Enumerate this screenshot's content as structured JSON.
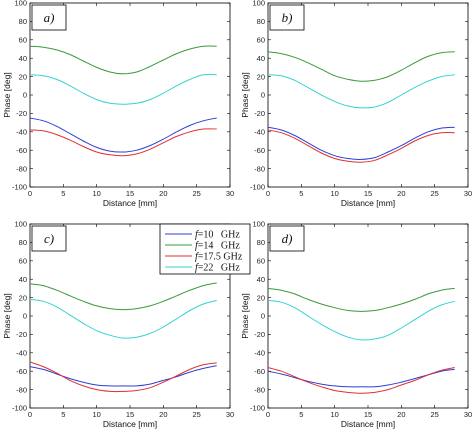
{
  "chart_data": [
    {
      "type": "line",
      "panel_label": "a)",
      "xlabel": "Distance [mm]",
      "ylabel": "Phase [deg]",
      "xlim": [
        0,
        30
      ],
      "ylim": [
        -100,
        100
      ],
      "xticks": [
        0,
        5,
        10,
        15,
        20,
        25,
        30
      ],
      "yticks": [
        -100,
        -80,
        -60,
        -40,
        -20,
        0,
        20,
        40,
        60,
        80,
        100
      ],
      "grid": false,
      "x": [
        0,
        2,
        4,
        6,
        8,
        10,
        12,
        14,
        16,
        18,
        20,
        22,
        24,
        26,
        28
      ],
      "series": [
        {
          "color": "#2b3fd6",
          "values": [
            -25,
            -28,
            -34,
            -42,
            -50,
            -57,
            -61,
            -62,
            -60,
            -55,
            -48,
            -40,
            -33,
            -28,
            -25
          ]
        },
        {
          "color": "#3a9a3a",
          "values": [
            53,
            52,
            49,
            44,
            37,
            30,
            25,
            23,
            25,
            31,
            38,
            45,
            50,
            53,
            53
          ]
        },
        {
          "color": "#e03030",
          "values": [
            -38,
            -39,
            -43,
            -49,
            -56,
            -62,
            -65,
            -66,
            -64,
            -59,
            -52,
            -45,
            -40,
            -37,
            -37
          ]
        },
        {
          "color": "#36d2d2",
          "values": [
            22,
            21,
            17,
            10,
            2,
            -5,
            -9,
            -10,
            -9,
            -5,
            2,
            10,
            17,
            22,
            22
          ]
        }
      ]
    },
    {
      "type": "line",
      "panel_label": "b)",
      "xlabel": "Distance [mm]",
      "ylabel": "Phase [deg]",
      "xlim": [
        0,
        30
      ],
      "ylim": [
        -100,
        100
      ],
      "xticks": [
        0,
        5,
        10,
        15,
        20,
        25,
        30
      ],
      "yticks": [
        -100,
        -80,
        -60,
        -40,
        -20,
        0,
        20,
        40,
        60,
        80,
        100
      ],
      "grid": false,
      "x": [
        0,
        2,
        4,
        6,
        8,
        10,
        12,
        14,
        16,
        18,
        20,
        22,
        24,
        26,
        28
      ],
      "series": [
        {
          "color": "#2b3fd6",
          "values": [
            -35,
            -38,
            -44,
            -52,
            -60,
            -66,
            -69,
            -70,
            -68,
            -62,
            -55,
            -47,
            -40,
            -36,
            -35
          ]
        },
        {
          "color": "#3a9a3a",
          "values": [
            47,
            45,
            41,
            35,
            28,
            21,
            17,
            15,
            16,
            20,
            27,
            35,
            42,
            46,
            47
          ]
        },
        {
          "color": "#e03030",
          "values": [
            -38,
            -41,
            -47,
            -55,
            -63,
            -69,
            -72,
            -73,
            -71,
            -65,
            -58,
            -50,
            -44,
            -41,
            -41
          ]
        },
        {
          "color": "#36d2d2",
          "values": [
            22,
            21,
            16,
            8,
            0,
            -7,
            -12,
            -14,
            -13,
            -8,
            0,
            8,
            15,
            20,
            22
          ]
        }
      ]
    },
    {
      "type": "line",
      "panel_label": "c)",
      "xlabel": "Distance [mm]",
      "ylabel": "Phase [deg]",
      "xlim": [
        0,
        30
      ],
      "ylim": [
        -100,
        100
      ],
      "xticks": [
        0,
        5,
        10,
        15,
        20,
        25,
        30
      ],
      "yticks": [
        -100,
        -80,
        -60,
        -40,
        -20,
        0,
        20,
        40,
        60,
        80,
        100
      ],
      "grid": false,
      "x": [
        0,
        2,
        4,
        6,
        8,
        10,
        12,
        14,
        16,
        18,
        20,
        22,
        24,
        26,
        28
      ],
      "series": [
        {
          "color": "#2b3fd6",
          "values": [
            -55,
            -58,
            -63,
            -68,
            -72,
            -75,
            -76,
            -76,
            -76,
            -74,
            -70,
            -66,
            -61,
            -57,
            -54
          ]
        },
        {
          "color": "#3a9a3a",
          "values": [
            35,
            33,
            28,
            22,
            16,
            11,
            8,
            7,
            8,
            11,
            16,
            22,
            28,
            33,
            36
          ]
        },
        {
          "color": "#e03030",
          "values": [
            -50,
            -55,
            -62,
            -70,
            -76,
            -80,
            -82,
            -82,
            -81,
            -78,
            -72,
            -65,
            -58,
            -53,
            -51
          ]
        },
        {
          "color": "#36d2d2",
          "values": [
            18,
            16,
            10,
            1,
            -8,
            -16,
            -21,
            -24,
            -23,
            -19,
            -12,
            -3,
            6,
            13,
            17
          ]
        }
      ]
    },
    {
      "type": "line",
      "panel_label": "d)",
      "xlabel": "Distance [mm]",
      "ylabel": "Phase [deg]",
      "xlim": [
        0,
        30
      ],
      "ylim": [
        -100,
        100
      ],
      "xticks": [
        0,
        5,
        10,
        15,
        20,
        25,
        30
      ],
      "yticks": [
        -100,
        -80,
        -60,
        -40,
        -20,
        0,
        20,
        40,
        60,
        80,
        100
      ],
      "grid": false,
      "x": [
        0,
        2,
        4,
        6,
        8,
        10,
        12,
        14,
        16,
        18,
        20,
        22,
        24,
        26,
        28
      ],
      "series": [
        {
          "color": "#2b3fd6",
          "values": [
            -60,
            -63,
            -67,
            -71,
            -74,
            -76,
            -77,
            -77,
            -77,
            -75,
            -72,
            -68,
            -64,
            -60,
            -58
          ]
        },
        {
          "color": "#3a9a3a",
          "values": [
            30,
            28,
            24,
            18,
            13,
            9,
            6,
            5,
            6,
            9,
            13,
            18,
            24,
            28,
            30
          ]
        },
        {
          "color": "#e03030",
          "values": [
            -56,
            -60,
            -66,
            -72,
            -77,
            -81,
            -83,
            -84,
            -83,
            -80,
            -75,
            -70,
            -64,
            -59,
            -56
          ]
        },
        {
          "color": "#36d2d2",
          "values": [
            17,
            15,
            9,
            0,
            -9,
            -17,
            -23,
            -26,
            -25,
            -21,
            -13,
            -4,
            5,
            12,
            16
          ]
        }
      ]
    }
  ],
  "legend": {
    "placement": "center",
    "entries": [
      {
        "italic": "f",
        "text": "=10   GHz",
        "color": "#2b3fd6"
      },
      {
        "italic": "f",
        "text": "=14   GHz",
        "color": "#3a9a3a"
      },
      {
        "italic": "f",
        "text": "=17.5 GHz",
        "color": "#e03030"
      },
      {
        "italic": "f",
        "text": "=22   GHz",
        "color": "#36d2d2"
      }
    ]
  }
}
